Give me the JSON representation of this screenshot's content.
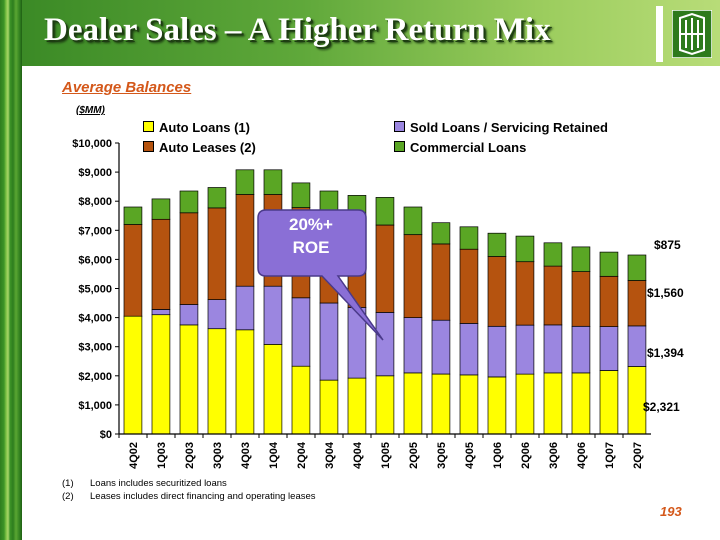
{
  "title": "Dealer Sales – A Higher Return Mix",
  "subtitle": "Average Balances",
  "units": "($MM)",
  "callout": {
    "line1": "20%+",
    "line2": "ROE"
  },
  "footnotes": [
    {
      "num": "(1)",
      "text": "Loans includes securitized loans"
    },
    {
      "num": "(2)",
      "text": "Leases includes direct financing and operating leases"
    }
  ],
  "page_number": "193",
  "colors": {
    "auto_loans": "#ffff00",
    "auto_leases": "#b5530f",
    "sold_loans": "#9b86e0",
    "commercial": "#5aa624",
    "callout": "#8a6fd6",
    "title_bar": "#4c9a2f",
    "accent_text": "#d4581a"
  },
  "chart_data": {
    "type": "bar",
    "stacked": true,
    "categories": [
      "4Q02",
      "1Q03",
      "2Q03",
      "3Q03",
      "4Q03",
      "1Q04",
      "2Q04",
      "3Q04",
      "4Q04",
      "1Q05",
      "2Q05",
      "3Q05",
      "4Q05",
      "1Q06",
      "2Q06",
      "3Q06",
      "4Q06",
      "1Q07",
      "2Q07"
    ],
    "series": [
      {
        "name": "Auto Loans (1)",
        "color": "#ffff00",
        "values": [
          4050,
          4100,
          3750,
          3620,
          3580,
          3080,
          2330,
          1850,
          1920,
          2000,
          2100,
          2060,
          2030,
          1960,
          2060,
          2100,
          2100,
          2180,
          2321
        ]
      },
      {
        "name": "Sold Loans / Servicing Retained",
        "color": "#9b86e0",
        "values": [
          0,
          180,
          700,
          1000,
          1500,
          2000,
          2350,
          2650,
          2430,
          2180,
          1900,
          1850,
          1770,
          1740,
          1680,
          1650,
          1600,
          1510,
          1394
        ]
      },
      {
        "name": "Auto Leases (2)",
        "color": "#b5530f",
        "values": [
          3150,
          3100,
          3150,
          3150,
          3150,
          3150,
          3100,
          3100,
          3150,
          3000,
          2850,
          2620,
          2550,
          2400,
          2180,
          2020,
          1880,
          1730,
          1560
        ]
      },
      {
        "name": "Commercial Loans",
        "color": "#5aa624",
        "values": [
          600,
          700,
          750,
          700,
          850,
          850,
          850,
          750,
          700,
          950,
          950,
          730,
          770,
          800,
          880,
          800,
          850,
          830,
          875
        ]
      }
    ],
    "y_ticks": [
      "$0",
      "$1,000",
      "$2,000",
      "$3,000",
      "$4,000",
      "$5,000",
      "$6,000",
      "$7,000",
      "$8,000",
      "$9,000",
      "$10,000"
    ],
    "ylim": [
      0,
      10000
    ],
    "grid": false,
    "legend": [
      {
        "label": "Auto Loans (1)",
        "color": "#ffff00"
      },
      {
        "label": "Auto Leases (2)",
        "color": "#b5530f"
      },
      {
        "label": "Sold Loans / Servicing Retained",
        "color": "#9b86e0"
      },
      {
        "label": "Commercial Loans",
        "color": "#5aa624"
      }
    ],
    "annotations": [
      "$875",
      "$1,560",
      "$1,394",
      "$2,321"
    ]
  }
}
